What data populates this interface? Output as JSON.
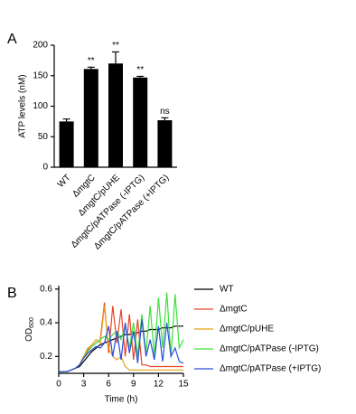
{
  "chart_data": [
    {
      "type": "bar",
      "panel_label": "A",
      "ylabel": "ATP levels (nM)",
      "categories": [
        "WT",
        "ΔmgtC",
        "ΔmgtC/pUHE",
        "ΔmgtC/pATPase (-IPTG)",
        "ΔmgtC/pATPase (+IPTG)"
      ],
      "values": [
        75,
        161,
        170,
        147,
        77
      ],
      "errors": [
        4,
        3,
        19,
        2,
        4
      ],
      "annotations": [
        null,
        "**",
        "**",
        "**",
        "ns"
      ],
      "color": "#000000",
      "ylim": [
        0,
        200
      ],
      "yticks": [
        0,
        50,
        100,
        150,
        200
      ]
    },
    {
      "type": "line",
      "panel_label": "B",
      "ylabel": "OD",
      "ylabel_sub": "600",
      "xlabel": "Time (h)",
      "x": [
        0,
        0.5,
        1,
        1.5,
        2,
        2.5,
        3,
        3.5,
        4,
        4.5,
        5,
        5.5,
        6,
        6.5,
        7,
        7.5,
        8,
        8.5,
        9,
        9.5,
        10,
        10.5,
        11,
        11.5,
        12,
        12.5,
        13,
        13.5,
        14,
        14.5,
        15
      ],
      "series": [
        {
          "name": "WT",
          "color": "#000000",
          "values": [
            0.11,
            0.11,
            0.11,
            0.12,
            0.13,
            0.14,
            0.17,
            0.2,
            0.23,
            0.25,
            0.27,
            0.28,
            0.29,
            0.3,
            0.31,
            0.32,
            0.33,
            0.33,
            0.34,
            0.34,
            0.35,
            0.35,
            0.36,
            0.36,
            0.36,
            0.37,
            0.37,
            0.37,
            0.38,
            0.38,
            0.38
          ]
        },
        {
          "name": "ΔmgtC",
          "color": "#e8452a",
          "values": [
            0.11,
            0.11,
            0.11,
            0.12,
            0.13,
            0.15,
            0.2,
            0.24,
            0.26,
            0.28,
            0.3,
            0.52,
            0.22,
            0.5,
            0.28,
            0.48,
            0.2,
            0.45,
            0.18,
            0.42,
            0.15,
            0.15,
            0.14,
            0.14,
            0.14,
            0.14,
            0.14,
            0.14,
            0.14,
            0.14,
            0.14
          ]
        },
        {
          "name": "ΔmgtC/pUHE",
          "color": "#e8a317",
          "values": [
            0.11,
            0.11,
            0.11,
            0.12,
            0.13,
            0.15,
            0.2,
            0.25,
            0.27,
            0.3,
            0.28,
            0.5,
            0.25,
            0.2,
            0.18,
            0.2,
            0.14,
            0.12,
            0.12,
            0.12,
            0.12,
            0.12,
            0.12,
            0.12,
            0.12,
            0.12,
            0.12,
            0.12,
            0.12,
            0.12,
            0.12
          ]
        },
        {
          "name": "ΔmgtC/pATPase (-IPTG)",
          "color": "#3ee03e",
          "values": [
            0.11,
            0.11,
            0.11,
            0.12,
            0.13,
            0.15,
            0.19,
            0.23,
            0.26,
            0.28,
            0.3,
            0.32,
            0.3,
            0.33,
            0.35,
            0.3,
            0.38,
            0.25,
            0.4,
            0.2,
            0.45,
            0.22,
            0.5,
            0.2,
            0.55,
            0.25,
            0.58,
            0.2,
            0.57,
            0.25,
            0.3
          ]
        },
        {
          "name": "ΔmgtC/pATPase (+IPTG)",
          "color": "#2b4fd8",
          "values": [
            0.11,
            0.11,
            0.11,
            0.12,
            0.13,
            0.15,
            0.19,
            0.22,
            0.24,
            0.26,
            0.25,
            0.28,
            0.38,
            0.2,
            0.35,
            0.18,
            0.4,
            0.22,
            0.35,
            0.16,
            0.42,
            0.2,
            0.3,
            0.18,
            0.38,
            0.17,
            0.4,
            0.2,
            0.25,
            0.17,
            0.16
          ]
        }
      ],
      "xlim": [
        0,
        15
      ],
      "xticks": [
        0,
        3,
        6,
        9,
        12,
        15
      ],
      "ylim": [
        0.1,
        0.62
      ],
      "yticks": [
        0.2,
        0.4,
        0.6
      ]
    }
  ]
}
